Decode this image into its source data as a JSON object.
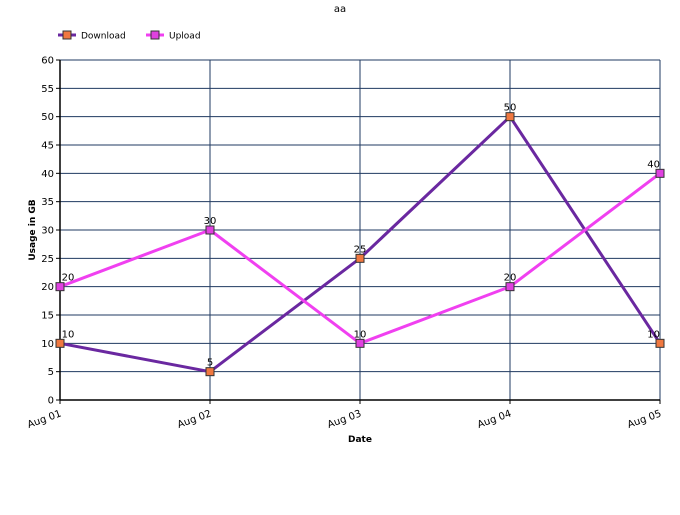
{
  "chart_data": {
    "type": "line",
    "title": "aa",
    "xlabel": "Date",
    "ylabel": "Usage in GB",
    "categories": [
      "Aug 01",
      "Aug 02",
      "Aug 03",
      "Aug 04",
      "Aug 05"
    ],
    "ylim": [
      0,
      60
    ],
    "yticks": [
      0,
      5,
      10,
      15,
      20,
      25,
      30,
      35,
      40,
      45,
      50,
      55,
      60
    ],
    "grid": true,
    "legend": "top-left",
    "series": [
      {
        "name": "Download",
        "values": [
          10,
          5,
          25,
          50,
          10
        ],
        "line_color": "#6a28a0",
        "marker_color": "#f07840"
      },
      {
        "name": "Upload",
        "values": [
          20,
          30,
          10,
          20,
          40
        ],
        "line_color": "#f040f0",
        "marker_color": "#e040e0"
      }
    ]
  }
}
